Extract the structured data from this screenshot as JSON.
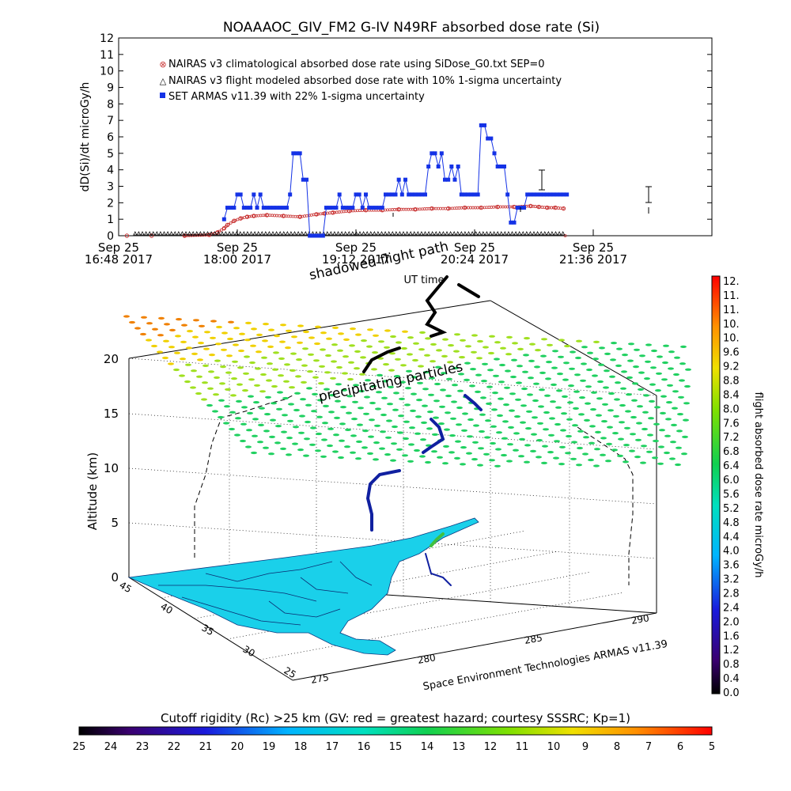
{
  "title": "NOAAAOC_GIV_FM2 G-IV    N49RF  absorbed dose rate (Si)",
  "chart_data": [
    {
      "type": "line",
      "title": "NOAAAOC_GIV_FM2 G-IV    N49RF  absorbed dose rate (Si)",
      "ylabel": "dD(Si)/dt microGy/h",
      "xlabel": "UT time",
      "ylim": [
        0,
        12
      ],
      "yticks": [
        "0",
        "1",
        "2",
        "3",
        "4",
        "5",
        "6",
        "7",
        "8",
        "9",
        "10",
        "11",
        "12"
      ],
      "xtick_values": [
        0,
        72,
        144,
        216,
        288
      ],
      "xtick_labels": [
        {
          "top": "Sep 25",
          "bottom": "16:48 2017"
        },
        {
          "top": "Sep 25",
          "bottom": "18:00 2017"
        },
        {
          "top": "Sep 25",
          "bottom": "19:12 2017"
        },
        {
          "top": "Sep 25",
          "bottom": "20:24 2017"
        },
        {
          "top": "Sep 25",
          "bottom": "21:36 2017"
        }
      ],
      "legend_position": "top-left",
      "series": [
        {
          "name": "NAIRAS v3 climatological absorbed dose rate using SiDose_G0.txt SEP=0",
          "color": "#c83232",
          "marker": "x",
          "x": [
            5,
            20,
            40,
            55,
            60,
            64,
            66,
            70,
            74,
            78,
            82,
            90,
            100,
            110,
            120,
            125,
            130,
            140,
            150,
            160,
            170,
            180,
            190,
            200,
            210,
            220,
            230,
            240,
            250,
            255,
            260,
            265,
            270
          ],
          "values": [
            0,
            0,
            0,
            0.05,
            0.2,
            0.45,
            0.65,
            0.9,
            1.05,
            1.15,
            1.2,
            1.25,
            1.2,
            1.15,
            1.3,
            1.35,
            1.4,
            1.5,
            1.55,
            1.55,
            1.6,
            1.6,
            1.65,
            1.65,
            1.7,
            1.7,
            1.75,
            1.75,
            1.8,
            1.75,
            1.7,
            1.7,
            1.65
          ]
        },
        {
          "name": "NAIRAS v3 flight modeled absorbed dose rate with 10% 1-sigma uncertainty",
          "color": "#000000",
          "marker": "triangle",
          "x": [
            5,
            20,
            40,
            60,
            80,
            100,
            120,
            140,
            160,
            180,
            200,
            220,
            240,
            260,
            280
          ],
          "values": [
            0,
            0,
            0,
            0,
            0,
            0,
            0,
            0,
            0,
            0,
            0,
            0,
            0,
            0,
            0
          ]
        },
        {
          "name": "SET ARMAS v11.39 with 22% 1-sigma uncertainty",
          "color": "#1432e6",
          "marker": "square",
          "x": [
            64,
            66,
            68,
            70,
            72,
            74,
            76,
            78,
            80,
            82,
            84,
            86,
            88,
            90,
            92,
            94,
            96,
            98,
            100,
            102,
            104,
            106,
            108,
            110,
            112,
            114,
            116,
            118,
            120,
            122,
            124,
            126,
            128,
            130,
            132,
            134,
            136,
            138,
            140,
            142,
            144,
            146,
            148,
            150,
            152,
            154,
            156,
            158,
            160,
            162,
            164,
            166,
            168,
            170,
            172,
            174,
            176,
            178,
            180,
            182,
            184,
            186,
            188,
            190,
            192,
            194,
            196,
            198,
            200,
            202,
            204,
            206,
            208,
            210,
            212,
            214,
            216,
            218,
            220,
            222,
            224,
            226,
            228,
            230,
            232,
            234,
            236,
            238,
            240,
            242,
            244,
            246,
            248,
            250,
            252,
            254,
            256,
            258,
            260,
            262,
            264,
            266,
            268,
            270,
            272
          ],
          "values": [
            1,
            1.7,
            1.7,
            1.7,
            2.5,
            2.5,
            1.7,
            1.7,
            1.7,
            2.5,
            1.7,
            2.5,
            1.7,
            1.7,
            1.7,
            1.7,
            1.7,
            1.7,
            1.7,
            1.7,
            2.5,
            5,
            5,
            5,
            3.4,
            3.4,
            0,
            0,
            0,
            0,
            0,
            1.7,
            1.7,
            1.7,
            1.7,
            2.5,
            1.7,
            1.7,
            1.7,
            1.7,
            2.5,
            2.5,
            1.7,
            2.5,
            1.7,
            1.7,
            1.7,
            1.7,
            1.7,
            2.5,
            2.5,
            2.5,
            2.5,
            3.4,
            2.5,
            3.4,
            2.5,
            2.5,
            2.5,
            2.5,
            2.5,
            2.5,
            4.2,
            5,
            5,
            4.2,
            5,
            3.4,
            3.4,
            4.2,
            3.4,
            4.2,
            2.5,
            2.5,
            2.5,
            2.5,
            2.5,
            2.5,
            6.7,
            6.7,
            5.9,
            5.9,
            5.0,
            4.2,
            4.2,
            4.2,
            2.5,
            0.8,
            0.8,
            1.7,
            1.7,
            1.7,
            2.5,
            2.5,
            2.5,
            2.5,
            2.5,
            2.5,
            2.5,
            2.5,
            2.5,
            2.5,
            2.5,
            2.5,
            2.5
          ]
        }
      ]
    },
    {
      "type": "scatter",
      "title": "",
      "ylabel": "Altitude (km)",
      "yticks": [
        "0",
        "5",
        "10",
        "15",
        "20"
      ],
      "lat_ticks": [
        "45",
        "40",
        "35",
        "30",
        "25"
      ],
      "lon_ticks": [
        "275",
        "280",
        "285",
        "290"
      ],
      "credit": "Space Environment Technologies ARMAS v11.39",
      "annotations": [
        "shadowed flight path",
        "precipitating particles"
      ]
    },
    {
      "type": "heatmap",
      "colorbar_label": "flight absorbed dose rate microGy/h",
      "ticks": [
        "12.",
        "11.",
        "11.",
        "10.",
        "10.",
        "9.6",
        "9.2",
        "8.8",
        "8.4",
        "8.0",
        "7.6",
        "7.2",
        "6.8",
        "6.4",
        "6.0",
        "5.6",
        "5.2",
        "4.8",
        "4.4",
        "4.0",
        "3.6",
        "3.2",
        "2.8",
        "2.4",
        "2.0",
        "1.6",
        "1.2",
        "0.8",
        "0.4",
        "0.0"
      ],
      "range": [
        0,
        12
      ]
    },
    {
      "type": "heatmap",
      "colorbar_label": "Cutoff rigidity (Rc) >25 km (GV: red = greatest hazard; courtesy SSSRC; Kp=1)",
      "ticks": [
        "25",
        "24",
        "23",
        "22",
        "21",
        "20",
        "19",
        "18",
        "17",
        "16",
        "15",
        "14",
        "13",
        "12",
        "11",
        "10",
        "9",
        "8",
        "7",
        "6",
        "5"
      ],
      "range": [
        25,
        5
      ]
    }
  ]
}
